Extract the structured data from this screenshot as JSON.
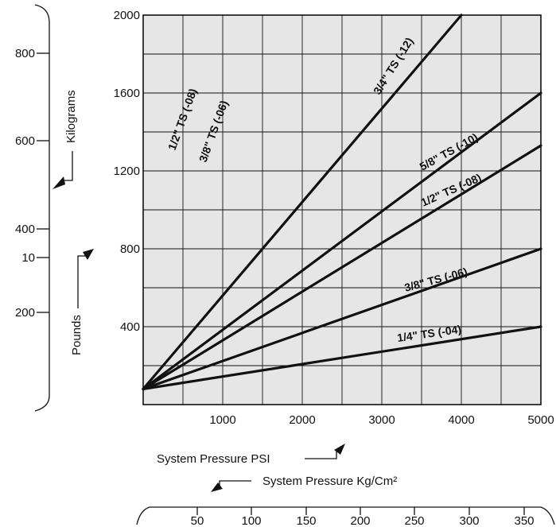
{
  "chart_data": {
    "type": "line",
    "title": "",
    "xlabel": "System Pressure PSI",
    "ylabel": "Pounds",
    "xlim": [
      0,
      5000
    ],
    "ylim": [
      0,
      2000
    ],
    "grid": true,
    "x_ticks": [
      "1000",
      "2000",
      "3000",
      "4000",
      "5000"
    ],
    "y_ticks": [
      "400",
      "800",
      "1200",
      "1600",
      "2000"
    ],
    "secondary_x_axis": {
      "label": "System Pressure Kg/Cm²",
      "ticks": [
        "50",
        "100",
        "150",
        "200",
        "250",
        "300",
        "350"
      ]
    },
    "secondary_y_axis": {
      "label": "Kilograms",
      "ticks": [
        "800",
        "600",
        "400",
        "10",
        "200"
      ]
    },
    "series": [
      {
        "name": "3/4\" TS (-12)",
        "x": [
          0,
          4000
        ],
        "y": [
          80,
          2000
        ]
      },
      {
        "name": "5/8\" TS (-10)",
        "x": [
          0,
          5000
        ],
        "y": [
          80,
          1600
        ]
      },
      {
        "name": "1/2\" TS (-08)",
        "x": [
          0,
          5000
        ],
        "y": [
          80,
          1330
        ]
      },
      {
        "name": "3/8\" TS (-06)",
        "x": [
          0,
          5000
        ],
        "y": [
          80,
          800
        ]
      },
      {
        "name": "1/4\" TS (-04)",
        "x": [
          0,
          5000
        ],
        "y": [
          80,
          400
        ]
      }
    ],
    "annotations": [
      "1/2\" TS (-08)",
      "3/8\" TS (-06)"
    ]
  }
}
